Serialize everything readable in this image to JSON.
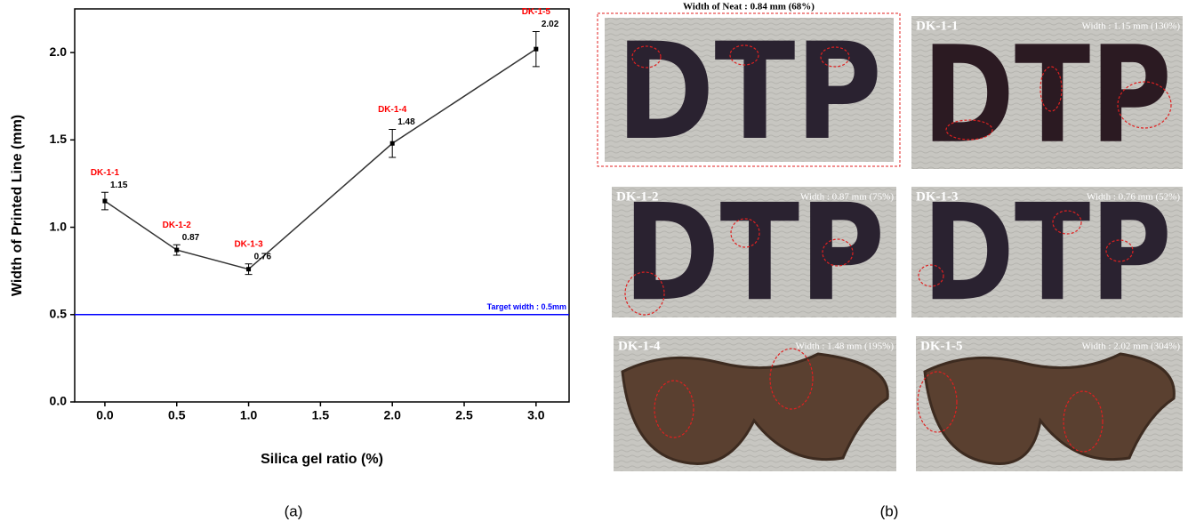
{
  "chart_data": {
    "type": "line",
    "xlabel": "Silica gel ratio (%)",
    "ylabel": "Width of Printed Line (mm)",
    "x": [
      0,
      0.5,
      1,
      2,
      3
    ],
    "series": [
      {
        "color": "#333333",
        "values": [
          1.15,
          0.87,
          0.76,
          1.48,
          2.02
        ],
        "errors": [
          0.05,
          0.03,
          0.03,
          0.08,
          0.1
        ]
      }
    ],
    "point_labels": [
      "DK-1-1",
      "DK-1-2",
      "DK-1-3",
      "DK-1-4",
      "DK-1-5"
    ],
    "point_label_color": "#ff0000",
    "reference_line": {
      "value": 0.5,
      "label": "Target width : 0.5mm",
      "color": "#0000ff"
    },
    "xlim": [
      -0.21,
      3.23
    ],
    "ylim": [
      0,
      2.25
    ],
    "xticks": [
      {
        "value": 0,
        "label": "0.0"
      },
      {
        "value": 0.5,
        "label": "0.5"
      },
      {
        "value": 1,
        "label": "1.0"
      },
      {
        "value": 1.5,
        "label": "1.5"
      },
      {
        "value": 2,
        "label": "2.0"
      },
      {
        "value": 2.5,
        "label": "2.5"
      },
      {
        "value": 3,
        "label": "3.0"
      }
    ],
    "yticks": [
      {
        "value": 0,
        "label": "0.0"
      },
      0.5,
      {
        "value": 1,
        "label": "1.0"
      },
      1.5,
      {
        "value": 2,
        "label": "2.0"
      }
    ],
    "caption": "(a)"
  },
  "photos": {
    "caption": "(b)",
    "neat": {
      "title": "Width of Neat : 0.84 mm (68%)",
      "letters": "DTP"
    },
    "panels": [
      {
        "label": "DK-1-1",
        "width": "Width : 1.15 mm (130%)",
        "letters": "DTP"
      },
      {
        "label": "DK-1-2",
        "width": "Width : 0.87 mm (75%)",
        "letters": "DTP"
      },
      {
        "label": "DK-1-3",
        "width": "Width : 0.76 mm (52%)",
        "letters": "DTP"
      },
      {
        "label": "DK-1-4",
        "width": "Width : 1.48 mm (195%)"
      },
      {
        "label": "DK-1-5",
        "width": "Width : 2.02 mm (304%)"
      }
    ]
  }
}
